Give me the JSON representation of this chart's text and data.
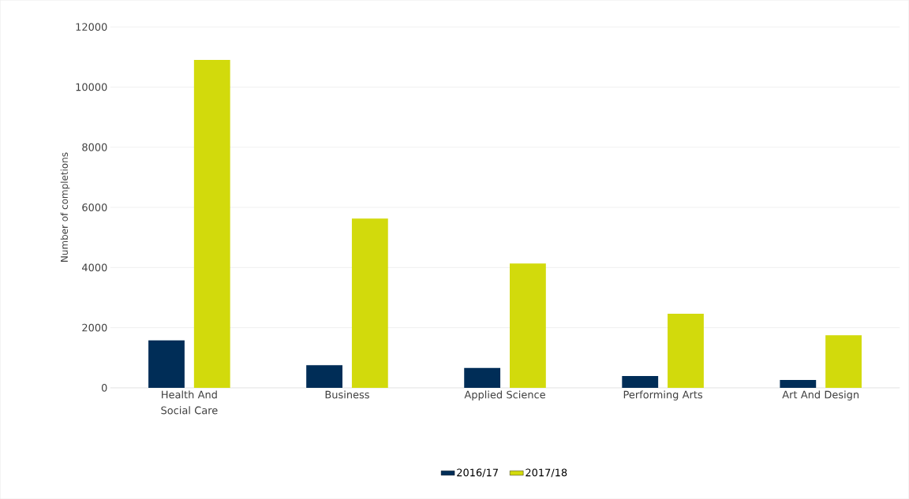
{
  "chart_data": {
    "type": "bar",
    "ylabel": "Number of completions",
    "categories": [
      "Health And Social Care",
      "Business",
      "Applied Science",
      "Performing Arts",
      "Art And Design"
    ],
    "series": [
      {
        "name": "2016/17",
        "color": "#002d57",
        "values": [
          1580,
          750,
          660,
          390,
          260
        ]
      },
      {
        "name": "2017/18",
        "color": "#d2da0c",
        "values": [
          10900,
          5630,
          4130,
          2460,
          1750
        ]
      }
    ],
    "ylim": [
      0,
      12000
    ],
    "yticks": [
      0,
      2000,
      4000,
      6000,
      8000,
      10000,
      12000
    ],
    "grid": "y",
    "legend": "bottom"
  }
}
